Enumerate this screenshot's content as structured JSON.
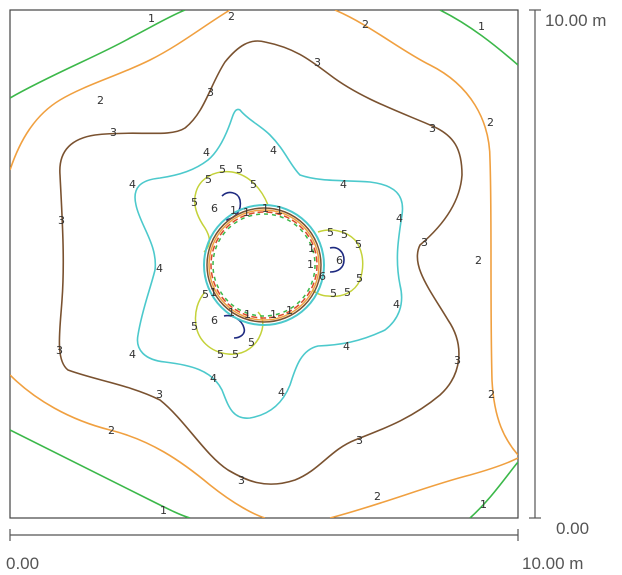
{
  "axes": {
    "x_min_label": "0.00",
    "x_max_label": "10.00 m",
    "y_min_label": "0.00",
    "y_max_label": "10.00 m"
  },
  "colors": {
    "frame": "#444444",
    "level_1": "#3cb84a",
    "level_2": "#f0a040",
    "level_3": "#7a5230",
    "level_4": "#4cc9cc",
    "level_5": "#c4d23a",
    "level_6": "#1e2a80",
    "ring_red": "#d84a2a"
  },
  "contour_levels": [
    "1",
    "2",
    "3",
    "4",
    "5",
    "6"
  ]
}
